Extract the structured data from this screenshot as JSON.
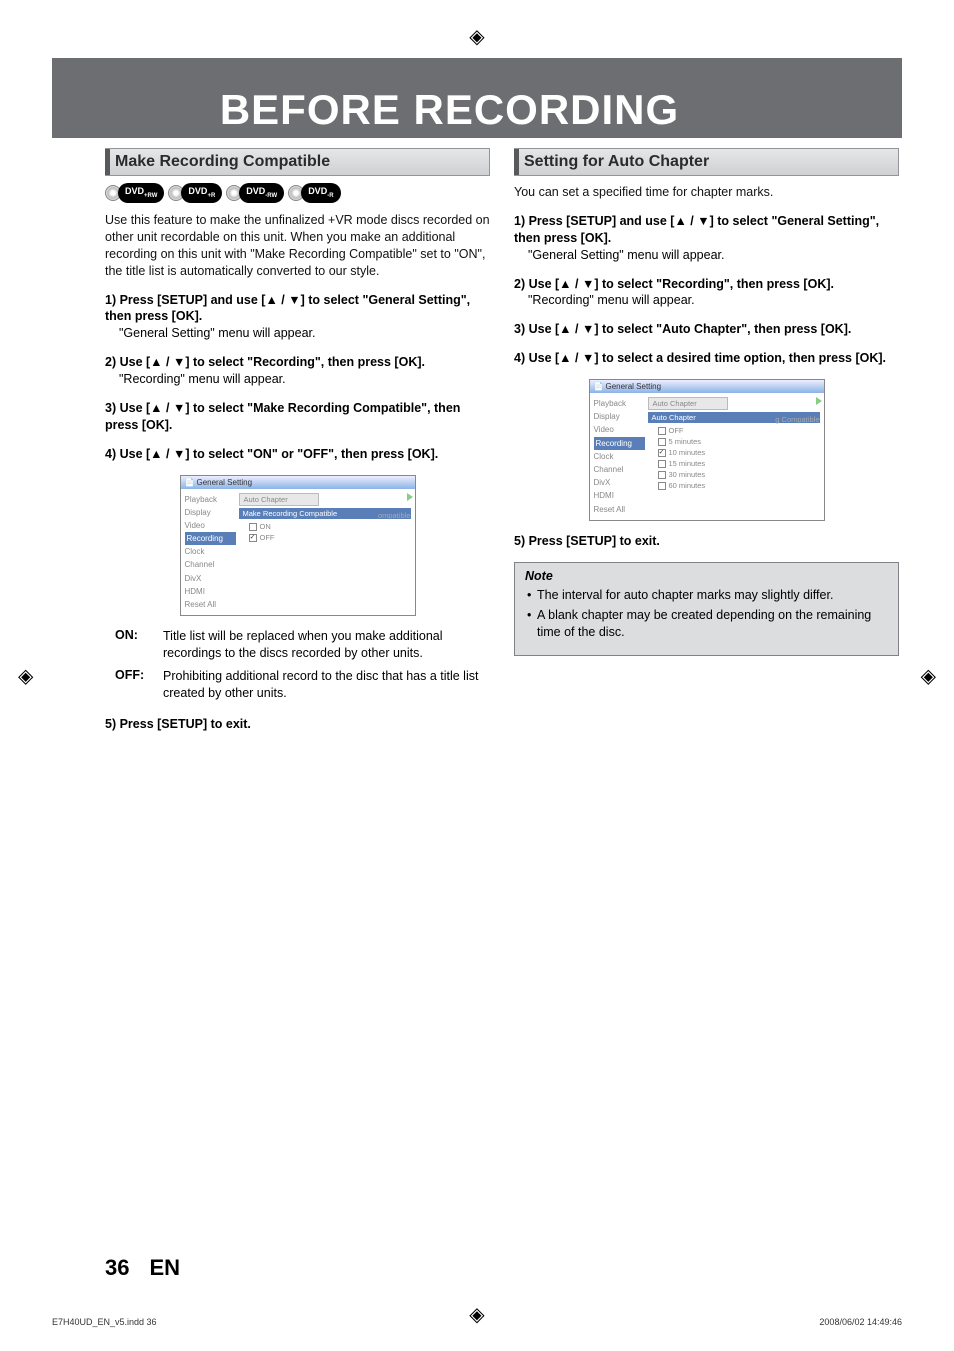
{
  "page_title": "BEFORE RECORDING",
  "crop_glyph": "◈",
  "left": {
    "section_title": "Make Recording Compatible",
    "badges": [
      {
        "label": "DVD",
        "sub": "+RW"
      },
      {
        "label": "DVD",
        "sub": "+R"
      },
      {
        "label": "DVD",
        "sub": "-RW"
      },
      {
        "label": "DVD",
        "sub": "-R"
      }
    ],
    "intro": "Use this feature to make the unfinalized +VR mode discs recorded on other unit recordable on this unit. When you make an additional recording on this unit with \"Make Recording Compatible\" set to \"ON\", the title list is automatically converted to our style.",
    "steps": {
      "s1_bold": "1) Press [SETUP] and use [▲ / ▼] to select \"General Setting\", then press [OK].",
      "s1_sub": "\"General Setting\" menu will appear.",
      "s2_bold": "2) Use [▲ / ▼] to select \"Recording\", then press [OK].",
      "s2_sub": "\"Recording\" menu will appear.",
      "s3_bold": "3) Use [▲ / ▼] to select \"Make Recording Compatible\", then press [OK].",
      "s4_bold": "4) Use [▲ / ▼] to select \"ON\" or \"OFF\", then press [OK].",
      "s5_bold": "5) Press [SETUP] to exit."
    },
    "menu": {
      "titlebar": "General Setting",
      "side": [
        "Playback",
        "Display",
        "Video",
        "Recording",
        "Clock",
        "Channel",
        "DivX",
        "HDMI",
        "Reset All"
      ],
      "active_side": "Recording",
      "crumb": "Auto Chapter",
      "active": "Make Recording Compatible",
      "ghost": "ompatible",
      "options": [
        "ON",
        "OFF"
      ],
      "checked": "OFF"
    },
    "defs": {
      "on_term": "ON:",
      "on_desc": "Title list will be replaced when you make additional recordings to the discs recorded by other units.",
      "off_term": "OFF:",
      "off_desc": "Prohibiting additional record to the disc that has a title list created by other units."
    }
  },
  "right": {
    "section_title": "Setting for Auto Chapter",
    "intro": "You can set a specified time for chapter marks.",
    "steps": {
      "s1_bold": "1) Press [SETUP] and use [▲ / ▼] to select \"General Setting\", then press [OK].",
      "s1_sub": "\"General Setting\" menu will appear.",
      "s2_bold": "2) Use [▲ / ▼] to select \"Recording\", then press [OK].",
      "s2_sub": "\"Recording\" menu will appear.",
      "s3_bold": "3) Use [▲ / ▼] to select \"Auto Chapter\", then press [OK].",
      "s4_bold": "4) Use [▲ / ▼] to select a desired time option, then press [OK].",
      "s5_bold": "5) Press [SETUP] to exit."
    },
    "menu": {
      "titlebar": "General Setting",
      "side": [
        "Playback",
        "Display",
        "Video",
        "Recording",
        "Clock",
        "Channel",
        "DivX",
        "HDMI",
        "Reset All"
      ],
      "active_side": "Recording",
      "crumb": "Auto Chapter",
      "active": "Auto Chapter",
      "ghost": "g Compatible",
      "options": [
        "OFF",
        "5 minutes",
        "10 minutes",
        "15 minutes",
        "30 minutes",
        "60 minutes"
      ],
      "checked": "10 minutes"
    },
    "note": {
      "title": "Note",
      "items": [
        "The interval for auto chapter marks may slightly differ.",
        "A blank chapter may be created depending on the remaining time of the disc."
      ]
    }
  },
  "page_number": "36",
  "page_lang": "EN",
  "footer_left": "E7H40UD_EN_v5.indd   36",
  "footer_right": "2008/06/02   14:49:46"
}
